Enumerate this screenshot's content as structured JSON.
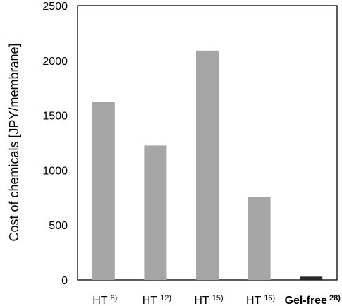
{
  "chart_data": {
    "type": "bar",
    "title": "",
    "xlabel": "",
    "ylabel": "Cost of chemicals [JPY/membrane]",
    "ylim": [
      0,
      2500
    ],
    "yticks": [
      0,
      500,
      1000,
      1500,
      2000,
      2500
    ],
    "grid": false,
    "legend": "none",
    "categories": [
      {
        "label": "HT",
        "sup": "8)",
        "bold": false
      },
      {
        "label": "HT",
        "sup": "12)",
        "bold": false
      },
      {
        "label": "HT",
        "sup": "15)",
        "bold": false
      },
      {
        "label": "HT",
        "sup": "16)",
        "bold": false
      },
      {
        "label": "Gel-free",
        "sup": "28)",
        "bold": true
      }
    ],
    "values": [
      1625,
      1225,
      2090,
      755,
      30
    ],
    "colors": [
      "#a6a6a6",
      "#a6a6a6",
      "#a6a6a6",
      "#a6a6a6",
      "#262626"
    ]
  }
}
